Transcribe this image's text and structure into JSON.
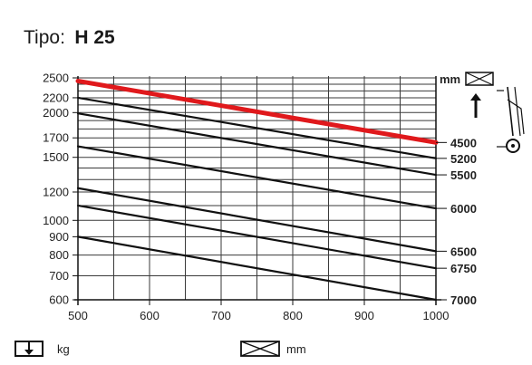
{
  "title": {
    "prefix": "Tipo:",
    "model": "H 25"
  },
  "chart_data": {
    "type": "line",
    "title": "Tipo: H 25",
    "xlabel": "mm",
    "ylabel": "kg",
    "xlim": [
      500,
      1000
    ],
    "ylim": [
      600,
      2500
    ],
    "y_scale": "log",
    "grid": true,
    "x_ticks": [
      "500",
      "600",
      "700",
      "800",
      "900",
      "1000"
    ],
    "y_ticks": [
      "2500",
      "2200",
      "2000",
      "1700",
      "1500",
      "1200",
      "1000",
      "900",
      "800",
      "700",
      "600"
    ],
    "right_unit": "mm",
    "series": [
      {
        "name": "4500",
        "color": "#e0191c",
        "x": [
          500,
          1000
        ],
        "y": [
          2450,
          1650
        ]
      },
      {
        "name": "5200",
        "color": "#111111",
        "x": [
          500,
          1000
        ],
        "y": [
          2200,
          1490
        ]
      },
      {
        "name": "5500",
        "color": "#111111",
        "x": [
          500,
          1000
        ],
        "y": [
          1990,
          1340
        ]
      },
      {
        "name": "6000",
        "color": "#111111",
        "x": [
          500,
          1000
        ],
        "y": [
          1610,
          1080
        ]
      },
      {
        "name": "6500",
        "color": "#111111",
        "x": [
          500,
          1000
        ],
        "y": [
          1230,
          820
        ]
      },
      {
        "name": "6750",
        "color": "#111111",
        "x": [
          500,
          1000
        ],
        "y": [
          1100,
          735
        ]
      },
      {
        "name": "7000",
        "color": "#111111",
        "x": [
          500,
          1000
        ],
        "y": [
          900,
          600
        ]
      }
    ]
  },
  "legend": {
    "y_unit": "kg",
    "x_unit": "mm"
  },
  "icons": {
    "load_weight": "load-down-arrow-icon",
    "load_center": "crate-dimension-icon",
    "mast_height": "lift-height-icon",
    "forklift": "forklift-icon"
  }
}
